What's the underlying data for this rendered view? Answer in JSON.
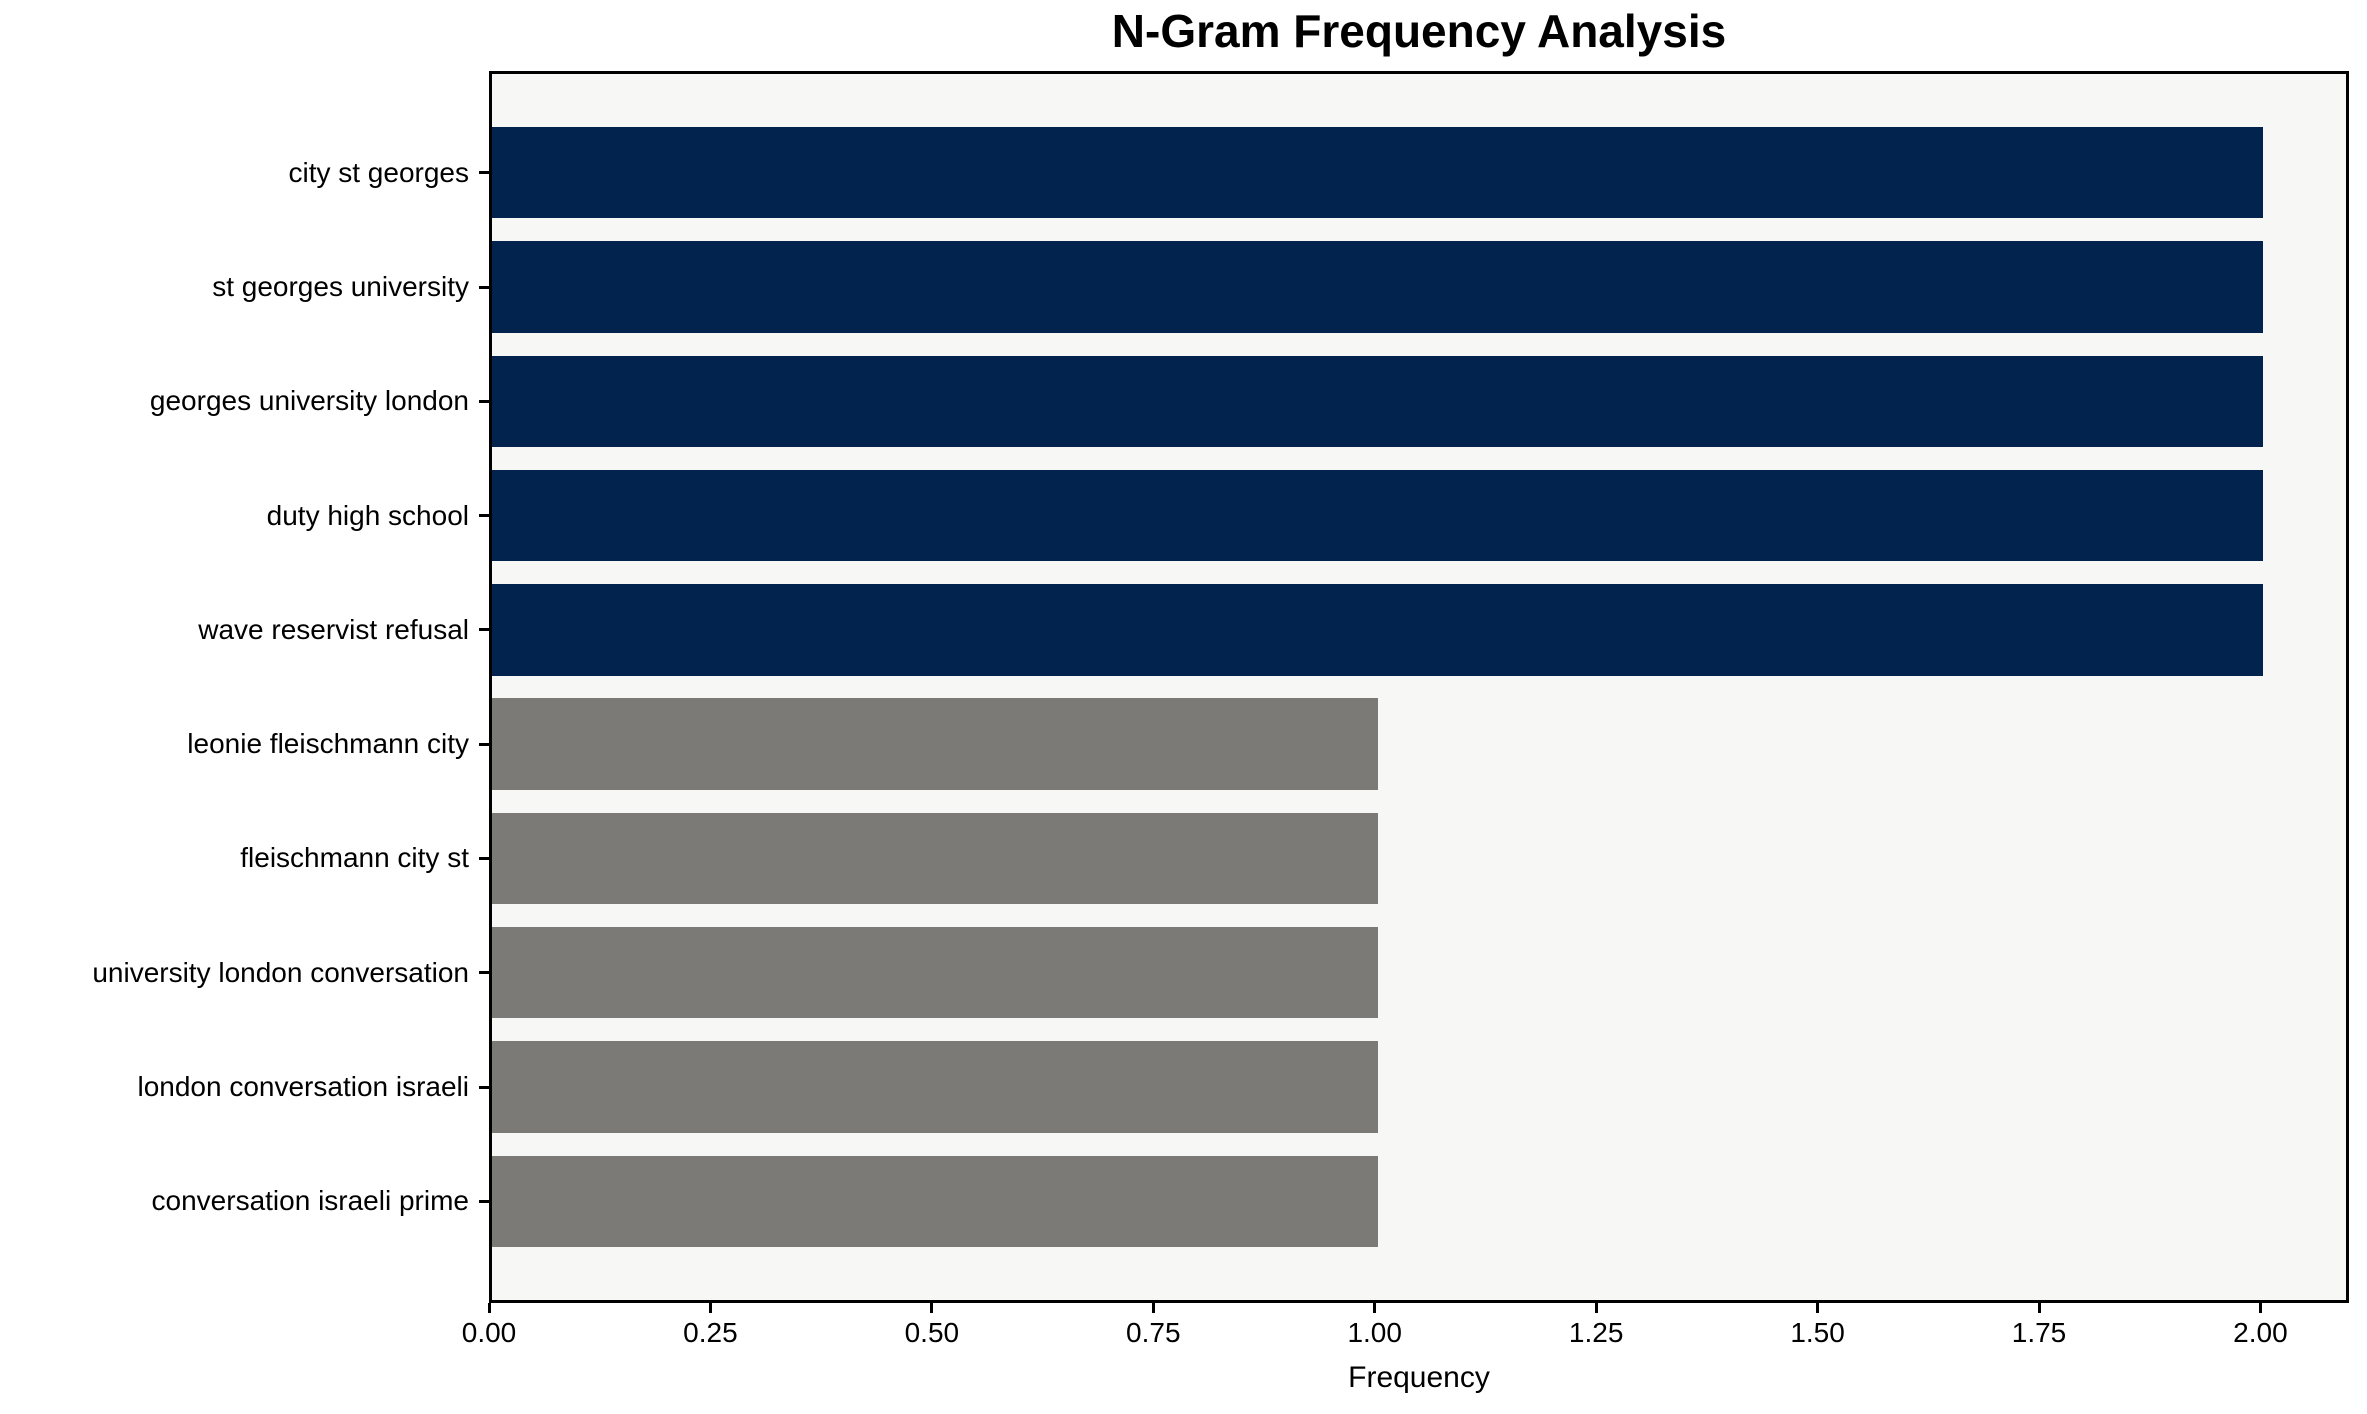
{
  "chart_data": {
    "type": "bar",
    "orientation": "horizontal",
    "title": "N-Gram Frequency Analysis",
    "xlabel": "Frequency",
    "ylabel": "",
    "legend": "none",
    "grid": false,
    "categories": [
      "city st georges",
      "st georges university",
      "georges university london",
      "duty high school",
      "wave reservist refusal",
      "leonie fleischmann city",
      "fleischmann city st",
      "university london conversation",
      "london conversation israeli",
      "conversation israeli prime"
    ],
    "values": [
      2,
      2,
      2,
      2,
      2,
      1,
      1,
      1,
      1,
      1
    ],
    "xlim": [
      0,
      2.1
    ],
    "x_tick_values": [
      0,
      0.25,
      0.5,
      0.75,
      1.0,
      1.25,
      1.5,
      1.75,
      2.0
    ],
    "x_tick_labels": [
      "0.00",
      "0.25",
      "0.50",
      "0.75",
      "1.00",
      "1.25",
      "1.50",
      "1.75",
      "2.00"
    ],
    "bar_colors": [
      "#02234E",
      "#02234E",
      "#02234E",
      "#02234E",
      "#02234E",
      "#7B7A76",
      "#7B7A76",
      "#7B7A76",
      "#7B7A76",
      "#7B7A76"
    ],
    "colors": {
      "high_freq_bar": "#02234E",
      "low_freq_bar": "#7B7A76",
      "plot_background": "#F7F7F6",
      "figure_background": "#FFFFFF",
      "axis": "#000000",
      "text": "#000000"
    }
  }
}
